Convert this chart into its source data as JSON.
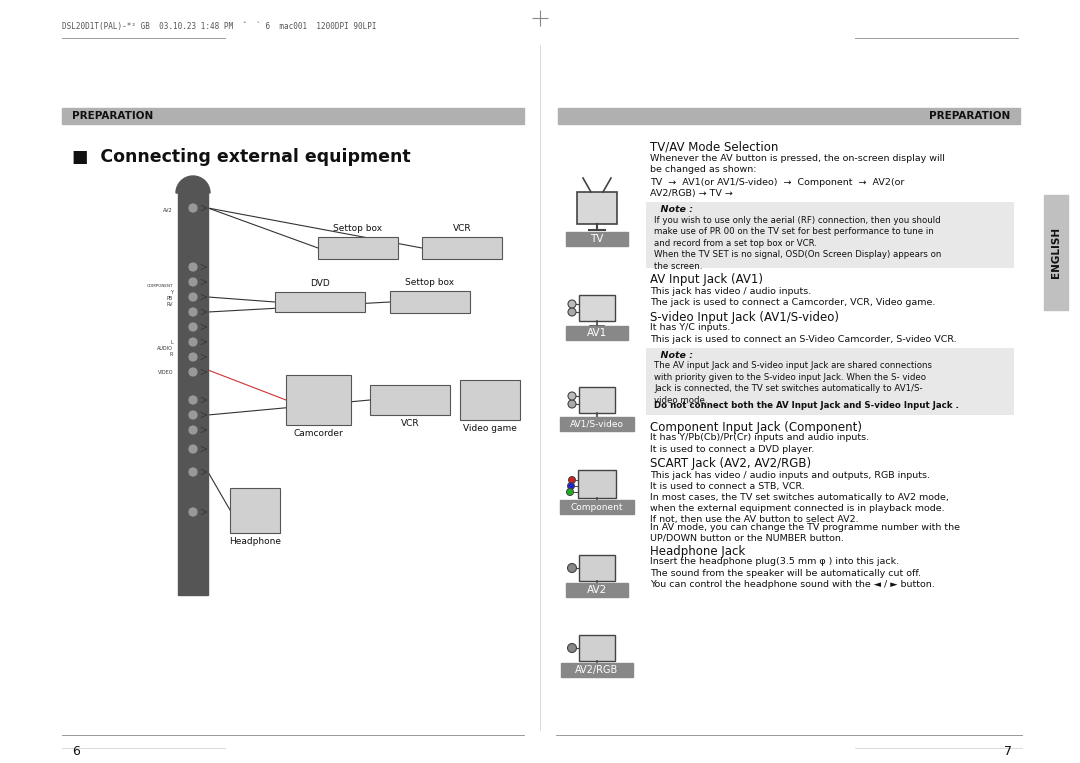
{
  "bg_color": "#ffffff",
  "header_text_left": "DSL20D1T(PAL)-*² GB  03.10.23 1:48 PM  ˆ  ` 6  mac001  1200DPI 90LPI",
  "left_section_header": "PREPARATION",
  "right_section_header": "PREPARATION",
  "title": "■  Connecting external equipment",
  "left_page_num": "6",
  "right_page_num": "7",
  "tv_av_heading": "TV/AV Mode Selection",
  "tv_av_body1": "Whenever the AV button is pressed, the on-screen display will\nbe changed as shown:",
  "tv_av_arrow": "TV  →  AV1(or AV1/S-video)  →  Component  →  AV2(or\nAV2/RGB) → TV →",
  "note1_heading": "Note :",
  "note1_body": "If you wish to use only the aerial (RF) connection, then you should\nmake use of PR 00 on the TV set for best performance to tune in\nand record from a set top box or VCR.\nWhen the TV SET is no signal, OSD(On Screen Display) appears on\nthe screen.",
  "av1_heading": "AV Input Jack (AV1)",
  "av1_body": "This jack has video / audio inputs.\nThe jack is used to connect a Camcorder, VCR, Video game.",
  "svideo_heading": "S-video Input Jack (AV1/S-video)",
  "svideo_body1": "It has Y/C inputs.\nThis jack is used to connect an S-Video Camcorder, S-video VCR.",
  "note2_heading": "Note :",
  "note2_body": "The AV input Jack and S-video input Jack are shared connections\nwith priority given to the S-video input Jack. When the S- video\nJack is connected, the TV set switches automatically to AV1/S-\nvideo mode.",
  "note2_bold": "Do not connect both the AV Input Jack and S-video Input Jack .",
  "component_heading": "Component Input Jack (Component)",
  "component_body": "It has Y/Pb(Cb)/Pr(Cr) inputs and audio inputs.\nIt is used to connect a DVD player.",
  "scart_heading": "SCART Jack (AV2, AV2/RGB)",
  "scart_body": "This jack has video / audio inputs and outputs, RGB inputs.\nIt is used to connect a STB, VCR.",
  "scart_body2": "In most cases, the TV set switches automatically to AV2 mode,\nwhen the external equipment connected is in playback mode.\nIf not, then use the AV button to select AV2.",
  "scart_body3": "In AV mode, you can change the TV programme number with the\nUP/DOWN button or the NUMBER button.",
  "headphone_heading": "Headphone Jack",
  "headphone_body": "Insert the headphone plug(3.5 mm φ ) into this jack.\nThe sound from the speaker will be automatically cut off.\nYou can control the headphone sound with the ◄ / ► button.",
  "label_tv": "TV",
  "label_av1": "AV1",
  "label_av1s": "AV1/S-video",
  "label_component": "Component",
  "label_av2": "AV2",
  "label_av2rgb": "AV2/RGB",
  "label_settop1": "Settop box",
  "label_vcr1": "VCR",
  "label_dvd": "DVD",
  "label_settop2": "Settop box",
  "label_camcorder": "Camcorder",
  "label_vcr2": "VCR",
  "label_videogame": "Video game",
  "label_headphone": "Headphone",
  "english_sidebar": "ENGLISH",
  "note_bg": "#e8e8e8",
  "bar_color": "#b0b0b0",
  "sidebar_color": "#c0c0c0"
}
